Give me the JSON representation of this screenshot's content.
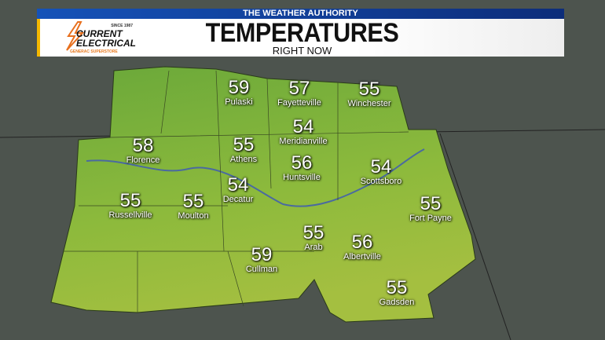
{
  "header": {
    "network": "THE WEATHER AUTHORITY",
    "title": "TEMPERATURES",
    "subtitle": "RIGHT NOW"
  },
  "sponsor": {
    "since": "SINCE 1987",
    "name_line1": "CURRENT",
    "name_line2": "ELECTRICAL",
    "tagline": "GENERAC SUPERSTORE"
  },
  "colors": {
    "banner_blue": "#1552b8",
    "accent_yellow": "#f5b800",
    "region_green": "#8bb83a",
    "terrain": "#4f5650"
  },
  "cities": [
    {
      "name": "Pulaski",
      "temp": "59"
    },
    {
      "name": "Fayetteville",
      "temp": "57"
    },
    {
      "name": "Winchester",
      "temp": "55"
    },
    {
      "name": "Meridianville",
      "temp": "54"
    },
    {
      "name": "Florence",
      "temp": "58"
    },
    {
      "name": "Athens",
      "temp": "55"
    },
    {
      "name": "Huntsville",
      "temp": "56"
    },
    {
      "name": "Scottsboro",
      "temp": "54"
    },
    {
      "name": "Decatur",
      "temp": "54"
    },
    {
      "name": "Russellville",
      "temp": "55"
    },
    {
      "name": "Moulton",
      "temp": "55"
    },
    {
      "name": "Fort Payne",
      "temp": "55"
    },
    {
      "name": "Arab",
      "temp": "55"
    },
    {
      "name": "Albertville",
      "temp": "56"
    },
    {
      "name": "Cullman",
      "temp": "59"
    },
    {
      "name": "Gadsden",
      "temp": "55"
    }
  ]
}
